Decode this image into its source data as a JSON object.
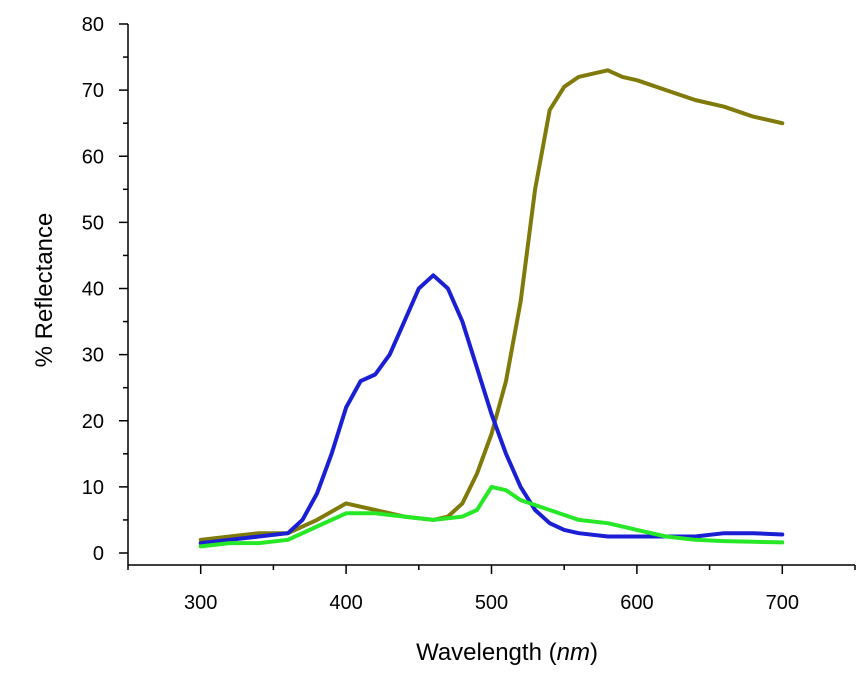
{
  "chart_data": {
    "type": "line",
    "xlabel": "Wavelength",
    "xlabel_unit": "nm",
    "ylabel": "% Reflectance",
    "xlim": [
      250,
      750
    ],
    "ylim": [
      0,
      80
    ],
    "x_ticks": [
      300,
      400,
      500,
      600,
      700
    ],
    "y_ticks": [
      0,
      10,
      20,
      30,
      40,
      50,
      60,
      70,
      80
    ],
    "grid": false,
    "legend": "none",
    "series": [
      {
        "color": "#7f7a0a",
        "x": [
          300,
          320,
          340,
          360,
          380,
          400,
          420,
          440,
          460,
          470,
          480,
          490,
          500,
          510,
          520,
          530,
          540,
          550,
          560,
          570,
          580,
          590,
          600,
          620,
          640,
          660,
          680,
          700
        ],
        "y": [
          2,
          2.5,
          3,
          3,
          5,
          7.5,
          6.5,
          5.5,
          5,
          5.5,
          7.5,
          12,
          18,
          26,
          38,
          55,
          67,
          70.5,
          72,
          72.5,
          73,
          72,
          71.5,
          70,
          68.5,
          67.5,
          66,
          65
        ]
      },
      {
        "color": "#1a1fd4",
        "x": [
          300,
          320,
          340,
          360,
          370,
          380,
          390,
          400,
          410,
          420,
          430,
          440,
          450,
          460,
          470,
          480,
          490,
          500,
          510,
          520,
          530,
          540,
          550,
          560,
          580,
          600,
          620,
          640,
          660,
          680,
          700
        ],
        "y": [
          1.5,
          2,
          2.5,
          3,
          5,
          9,
          15,
          22,
          26,
          27,
          30,
          35,
          40,
          42,
          40,
          35,
          28,
          21,
          15,
          10,
          6.5,
          4.5,
          3.5,
          3,
          2.5,
          2.5,
          2.5,
          2.5,
          3,
          3,
          2.8
        ]
      },
      {
        "color": "#27e827",
        "x": [
          300,
          320,
          340,
          360,
          380,
          400,
          420,
          440,
          460,
          480,
          490,
          500,
          510,
          520,
          540,
          560,
          580,
          600,
          620,
          640,
          660,
          680,
          700
        ],
        "y": [
          1,
          1.5,
          1.5,
          2,
          4,
          6,
          6,
          5.5,
          5,
          5.5,
          6.5,
          10,
          9.5,
          8,
          6.5,
          5,
          4.5,
          3.5,
          2.5,
          2,
          1.8,
          1.7,
          1.6
        ]
      }
    ]
  }
}
